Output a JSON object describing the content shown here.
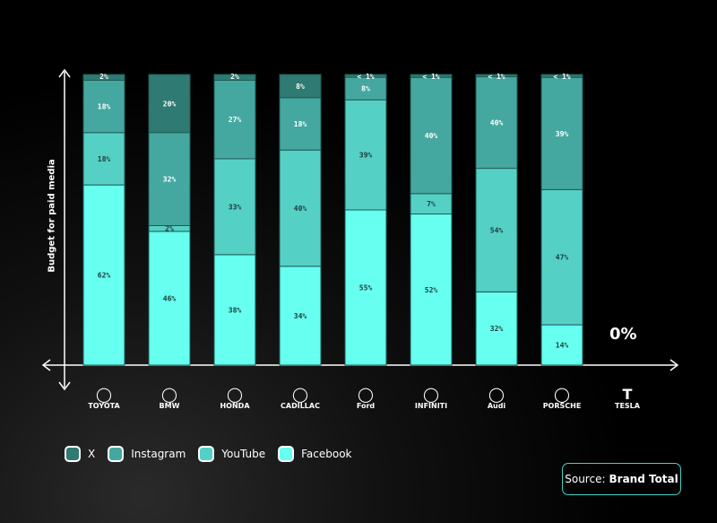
{
  "chart_data": {
    "type": "bar",
    "stacked": true,
    "ylabel": "Budget for paid media",
    "categories": [
      "TOYOTA",
      "BMW",
      "HONDA",
      "CADILLAC",
      "Ford",
      "INFINITI",
      "Audi",
      "PORSCHE",
      "TESLA"
    ],
    "series": [
      {
        "name": "Facebook",
        "color": "#66fff0",
        "values": [
          62,
          46,
          38,
          34,
          55,
          52,
          32,
          14,
          0
        ],
        "labels": [
          "62%",
          "46%",
          "38%",
          "34%",
          "55%",
          "52%",
          "32%",
          "14%",
          ""
        ]
      },
      {
        "name": "YouTube",
        "color": "#55d0c5",
        "values": [
          18,
          2,
          33,
          40,
          39,
          7,
          54,
          47,
          0
        ],
        "labels": [
          "18%",
          "2%",
          "33%",
          "40%",
          "39%",
          "7%",
          "54%",
          "47%",
          ""
        ]
      },
      {
        "name": "Instagram",
        "color": "#45a8a0",
        "values": [
          18,
          32,
          27,
          18,
          8,
          40,
          40,
          39,
          0
        ],
        "labels": [
          "18%",
          "32%",
          "27%",
          "18%",
          "8%",
          "40%",
          "40%",
          "39%",
          ""
        ]
      },
      {
        "name": "X",
        "color": "#2f7a72",
        "values": [
          2,
          20,
          2,
          8,
          1,
          1,
          1,
          1,
          0
        ],
        "labels": [
          "2%",
          "20%",
          "2%",
          "8%",
          "< 1%",
          "< 1%",
          "< 1%",
          "< 1%",
          ""
        ]
      }
    ],
    "tesla_label": "0%",
    "grid": false,
    "legend": "bottom-left"
  },
  "legend": [
    {
      "name": "X",
      "color": "#2f7a72"
    },
    {
      "name": "Instagram",
      "color": "#45a8a0"
    },
    {
      "name": "YouTube",
      "color": "#55d0c5"
    },
    {
      "name": "Facebook",
      "color": "#66fff0"
    }
  ],
  "source": {
    "prefix": "Source:",
    "name": "Brand Total"
  }
}
